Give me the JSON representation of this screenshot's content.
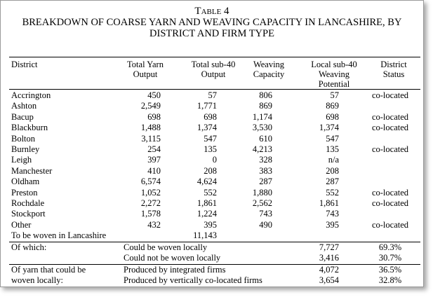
{
  "title": {
    "line1": "Table 4",
    "line2": "BREAKDOWN OF COARSE YARN AND WEAVING CAPACITY IN LANCASHIRE, BY",
    "line3": "DISTRICT AND FIRM TYPE"
  },
  "headers": {
    "district": "District",
    "yarn_1": "Total Yarn",
    "yarn_2": "Output",
    "sub40_1": "Total sub-40",
    "sub40_2": "Output",
    "weave_1": "Weaving",
    "weave_2": "Capacity",
    "local_1": "Local sub-40",
    "local_2": "Weaving",
    "local_3": "Potential",
    "status_1": "District",
    "status_2": "Status"
  },
  "rows": [
    {
      "district": "Accrington",
      "yarn": "450",
      "sub40": "57",
      "weaving": "806",
      "local": "57",
      "status": "co-located"
    },
    {
      "district": "Ashton",
      "yarn": "2,549",
      "sub40": "1,771",
      "weaving": "869",
      "local": "869",
      "status": ""
    },
    {
      "district": "Bacup",
      "yarn": "698",
      "sub40": "698",
      "weaving": "1,174",
      "local": "698",
      "status": "co-located"
    },
    {
      "district": "Blackburn",
      "yarn": "1,488",
      "sub40": "1,374",
      "weaving": "3,530",
      "local": "1,374",
      "status": "co-located"
    },
    {
      "district": "Bolton",
      "yarn": "3,115",
      "sub40": "547",
      "weaving": "610",
      "local": "547",
      "status": ""
    },
    {
      "district": "Burnley",
      "yarn": "254",
      "sub40": "135",
      "weaving": "4,213",
      "local": "135",
      "status": "co-located"
    },
    {
      "district": "Leigh",
      "yarn": "397",
      "sub40": "0",
      "weaving": "328",
      "local": "n/a",
      "status": ""
    },
    {
      "district": "Manchester",
      "yarn": "410",
      "sub40": "208",
      "weaving": "383",
      "local": "208",
      "status": ""
    },
    {
      "district": "Oldham",
      "yarn": "6,574",
      "sub40": "4,624",
      "weaving": "287",
      "local": "287",
      "status": ""
    },
    {
      "district": "Preston",
      "yarn": "1,052",
      "sub40": "552",
      "weaving": "1,880",
      "local": "552",
      "status": "co-located"
    },
    {
      "district": "Rochdale",
      "yarn": "2,272",
      "sub40": "1,861",
      "weaving": "2,562",
      "local": "1,861",
      "status": "co-located"
    },
    {
      "district": "Stockport",
      "yarn": "1,578",
      "sub40": "1,224",
      "weaving": "743",
      "local": "743",
      "status": ""
    },
    {
      "district": "Other",
      "yarn": "432",
      "sub40": "395",
      "weaving": "490",
      "local": "395",
      "status": "co-located"
    }
  ],
  "total_row": {
    "label": "To be woven in Lancashire",
    "sub40": "11,143"
  },
  "which": {
    "label": "Of which:",
    "rows": [
      {
        "desc": "Could be woven locally",
        "value": "7,727",
        "pct": "69.3%"
      },
      {
        "desc": "Could not be woven locally",
        "value": "3,416",
        "pct": "30.7%"
      }
    ]
  },
  "yarn_split": {
    "label_1": "Of yarn that could be",
    "label_2": "woven locally:",
    "rows": [
      {
        "desc": "Produced by integrated firms",
        "value": "4,072",
        "pct": "36.5%"
      },
      {
        "desc": "Produced by vertically co-located firms",
        "value": "3,654",
        "pct": "32.8%"
      }
    ]
  }
}
